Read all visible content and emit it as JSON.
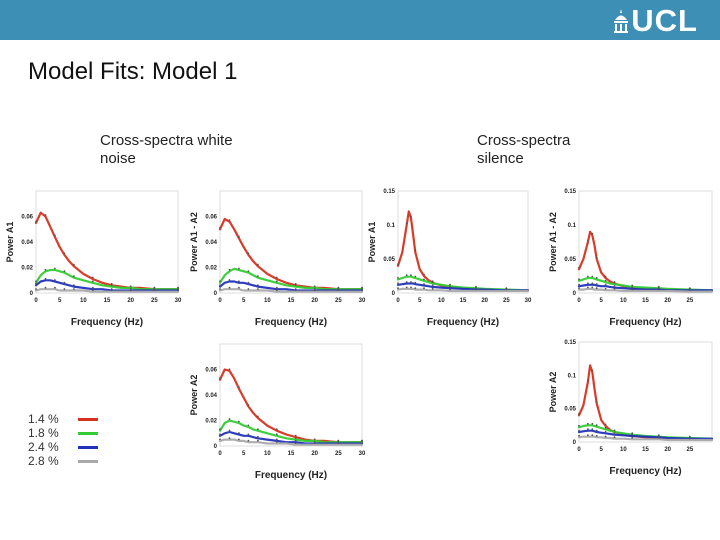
{
  "header": {
    "logo_text": "UCL",
    "bar_color": "#3d8fb6"
  },
  "slide": {
    "title": "Model Fits: Model 1"
  },
  "sections": {
    "white_noise": "Cross-spectra white\nnoise",
    "silence": "Cross-spectra\nsilence"
  },
  "legend": {
    "items": [
      {
        "label": "1.4 %",
        "color": "#d6321e"
      },
      {
        "label": "1.8 %",
        "color": "#33cc33"
      },
      {
        "label": "2.4 %",
        "color": "#2233bb"
      },
      {
        "label": "2.8 %",
        "color": "#aaaaaa"
      }
    ]
  },
  "chart_data": [
    {
      "id": "wn-a1",
      "type": "line",
      "condition": "white noise",
      "ylabel": "Power A1",
      "xlabel": "Frequency (Hz)",
      "xlim": [
        0,
        30
      ],
      "ylim": [
        0,
        0.08
      ],
      "xticks": [
        "0",
        "5",
        "10",
        "15",
        "20",
        "25",
        "30"
      ],
      "yticks": [
        "0",
        "0.02",
        "0.04",
        "0.06"
      ],
      "ytick_values": [
        0,
        0.02,
        0.04,
        0.06
      ],
      "x": [
        0,
        1,
        2,
        3,
        4,
        5,
        6,
        7,
        8,
        10,
        12,
        14,
        16,
        18,
        20,
        22,
        25,
        28,
        30
      ],
      "series": [
        {
          "name": "1.4 %",
          "color": "#d6321e",
          "values": [
            0.055,
            0.063,
            0.06,
            0.052,
            0.044,
            0.036,
            0.03,
            0.025,
            0.021,
            0.015,
            0.011,
            0.008,
            0.006,
            0.005,
            0.004,
            0.004,
            0.003,
            0.003,
            0.003
          ]
        },
        {
          "name": "1.8 %",
          "color": "#33cc33",
          "values": [
            0.008,
            0.014,
            0.017,
            0.018,
            0.018,
            0.017,
            0.016,
            0.014,
            0.012,
            0.01,
            0.008,
            0.006,
            0.005,
            0.004,
            0.004,
            0.003,
            0.003,
            0.003,
            0.003
          ]
        },
        {
          "name": "2.4 %",
          "color": "#2233bb",
          "values": [
            0.006,
            0.009,
            0.01,
            0.01,
            0.009,
            0.008,
            0.007,
            0.006,
            0.005,
            0.004,
            0.003,
            0.003,
            0.002,
            0.002,
            0.002,
            0.002,
            0.002,
            0.002,
            0.002
          ]
        },
        {
          "name": "2.8 %",
          "color": "#aaaaaa",
          "values": [
            0.002,
            0.003,
            0.003,
            0.003,
            0.003,
            0.002,
            0.002,
            0.002,
            0.002,
            0.002,
            0.001,
            0.001,
            0.001,
            0.001,
            0.001,
            0.001,
            0.001,
            0.001,
            0.001
          ]
        }
      ]
    },
    {
      "id": "wn-a1a2",
      "type": "line",
      "condition": "white noise",
      "ylabel": "Power A1 - A2",
      "xlabel": "Frequency (Hz)",
      "xlim": [
        0,
        30
      ],
      "ylim": [
        0,
        0.08
      ],
      "xticks": [
        "0",
        "5",
        "10",
        "15",
        "20",
        "25",
        "30"
      ],
      "yticks": [
        "0",
        "0.02",
        "0.04",
        "0.06"
      ],
      "ytick_values": [
        0,
        0.02,
        0.04,
        0.06
      ],
      "x": [
        0,
        1,
        2,
        3,
        4,
        5,
        6,
        7,
        8,
        10,
        12,
        14,
        16,
        18,
        20,
        22,
        25,
        28,
        30
      ],
      "series": [
        {
          "name": "1.4 %",
          "color": "#d6321e",
          "values": [
            0.05,
            0.058,
            0.056,
            0.05,
            0.043,
            0.036,
            0.03,
            0.025,
            0.021,
            0.015,
            0.011,
            0.008,
            0.006,
            0.005,
            0.004,
            0.004,
            0.003,
            0.003,
            0.003
          ]
        },
        {
          "name": "1.8 %",
          "color": "#33cc33",
          "values": [
            0.008,
            0.014,
            0.017,
            0.019,
            0.018,
            0.017,
            0.016,
            0.014,
            0.012,
            0.01,
            0.008,
            0.006,
            0.005,
            0.004,
            0.004,
            0.003,
            0.003,
            0.003,
            0.003
          ]
        },
        {
          "name": "2.4 %",
          "color": "#2233bb",
          "values": [
            0.005,
            0.008,
            0.009,
            0.009,
            0.008,
            0.008,
            0.007,
            0.006,
            0.005,
            0.004,
            0.003,
            0.003,
            0.002,
            0.002,
            0.002,
            0.002,
            0.002,
            0.002,
            0.002
          ]
        },
        {
          "name": "2.8 %",
          "color": "#aaaaaa",
          "values": [
            0.002,
            0.003,
            0.003,
            0.003,
            0.003,
            0.002,
            0.002,
            0.002,
            0.002,
            0.002,
            0.001,
            0.001,
            0.001,
            0.001,
            0.001,
            0.001,
            0.001,
            0.001,
            0.001
          ]
        }
      ]
    },
    {
      "id": "wn-a2",
      "type": "line",
      "condition": "white noise",
      "ylabel": "Power A2",
      "xlabel": "Frequency (Hz)",
      "xlim": [
        0,
        30
      ],
      "ylim": [
        0,
        0.08
      ],
      "xticks": [
        "0",
        "5",
        "10",
        "15",
        "20",
        "25",
        "30"
      ],
      "yticks": [
        "0",
        "0.02",
        "0.04",
        "0.06"
      ],
      "ytick_values": [
        0,
        0.02,
        0.04,
        0.06
      ],
      "x": [
        0,
        1,
        2,
        3,
        4,
        5,
        6,
        7,
        8,
        10,
        12,
        14,
        16,
        18,
        20,
        22,
        25,
        28,
        30
      ],
      "series": [
        {
          "name": "1.4 %",
          "color": "#d6321e",
          "values": [
            0.052,
            0.06,
            0.059,
            0.053,
            0.045,
            0.038,
            0.031,
            0.026,
            0.022,
            0.016,
            0.012,
            0.009,
            0.007,
            0.005,
            0.004,
            0.004,
            0.003,
            0.003,
            0.003
          ]
        },
        {
          "name": "1.8 %",
          "color": "#33cc33",
          "values": [
            0.012,
            0.018,
            0.02,
            0.019,
            0.018,
            0.016,
            0.015,
            0.013,
            0.012,
            0.01,
            0.008,
            0.006,
            0.005,
            0.004,
            0.004,
            0.003,
            0.003,
            0.003,
            0.003
          ]
        },
        {
          "name": "2.4 %",
          "color": "#2233bb",
          "values": [
            0.008,
            0.01,
            0.011,
            0.01,
            0.009,
            0.008,
            0.008,
            0.007,
            0.006,
            0.005,
            0.004,
            0.003,
            0.003,
            0.002,
            0.002,
            0.002,
            0.002,
            0.002,
            0.002
          ]
        },
        {
          "name": "2.8 %",
          "color": "#aaaaaa",
          "values": [
            0.004,
            0.005,
            0.005,
            0.005,
            0.004,
            0.004,
            0.003,
            0.003,
            0.003,
            0.002,
            0.002,
            0.002,
            0.001,
            0.001,
            0.001,
            0.001,
            0.001,
            0.001,
            0.001
          ]
        }
      ]
    },
    {
      "id": "sil-a1",
      "type": "line",
      "condition": "silence",
      "ylabel": "Power A1",
      "xlabel": "Frequency (Hz)",
      "xlim": [
        0,
        30
      ],
      "ylim": [
        0,
        0.15
      ],
      "xticks": [
        "0",
        "5",
        "10",
        "15",
        "20",
        "25",
        "30"
      ],
      "yticks": [
        "0",
        "0.05",
        "0.1",
        "0.15"
      ],
      "ytick_values": [
        0,
        0.05,
        0.1,
        0.15
      ],
      "x": [
        0,
        1,
        2,
        2.5,
        3,
        3.5,
        4,
        5,
        6,
        7,
        8,
        10,
        12,
        15,
        18,
        20,
        25,
        30
      ],
      "series": [
        {
          "name": "1.4 %",
          "color": "#d6321e",
          "values": [
            0.04,
            0.06,
            0.1,
            0.12,
            0.11,
            0.085,
            0.06,
            0.035,
            0.025,
            0.019,
            0.015,
            0.011,
            0.009,
            0.007,
            0.006,
            0.005,
            0.004,
            0.004
          ]
        },
        {
          "name": "1.8 %",
          "color": "#33cc33",
          "values": [
            0.02,
            0.022,
            0.024,
            0.024,
            0.024,
            0.023,
            0.022,
            0.02,
            0.018,
            0.016,
            0.014,
            0.012,
            0.01,
            0.008,
            0.007,
            0.006,
            0.005,
            0.004
          ]
        },
        {
          "name": "2.4 %",
          "color": "#2233bb",
          "values": [
            0.012,
            0.013,
            0.014,
            0.014,
            0.014,
            0.014,
            0.013,
            0.012,
            0.011,
            0.01,
            0.009,
            0.008,
            0.007,
            0.006,
            0.005,
            0.005,
            0.004,
            0.004
          ]
        },
        {
          "name": "2.8 %",
          "color": "#aaaaaa",
          "values": [
            0.005,
            0.006,
            0.006,
            0.006,
            0.006,
            0.006,
            0.005,
            0.005,
            0.005,
            0.004,
            0.004,
            0.004,
            0.003,
            0.003,
            0.003,
            0.003,
            0.003,
            0.003
          ]
        }
      ]
    },
    {
      "id": "sil-a1a2",
      "type": "line",
      "condition": "silence",
      "ylabel": "Power A1 - A2",
      "xlabel": "Frequency (Hz)",
      "xlim": [
        0,
        30
      ],
      "ylim": [
        0,
        0.15
      ],
      "xticks": [
        "0",
        "5",
        "10",
        "15",
        "20",
        "25"
      ],
      "yticks": [
        "0",
        "0.05",
        "0.1",
        "0.15"
      ],
      "ytick_values": [
        0,
        0.05,
        0.1,
        0.15
      ],
      "x": [
        0,
        1,
        2,
        2.5,
        3,
        3.5,
        4,
        5,
        6,
        7,
        8,
        10,
        12,
        15,
        18,
        20,
        25,
        30
      ],
      "series": [
        {
          "name": "1.4 %",
          "color": "#d6321e",
          "values": [
            0.035,
            0.05,
            0.075,
            0.09,
            0.085,
            0.07,
            0.05,
            0.03,
            0.022,
            0.017,
            0.014,
            0.01,
            0.008,
            0.006,
            0.005,
            0.005,
            0.004,
            0.004
          ]
        },
        {
          "name": "1.8 %",
          "color": "#33cc33",
          "values": [
            0.018,
            0.02,
            0.022,
            0.022,
            0.022,
            0.021,
            0.02,
            0.018,
            0.016,
            0.014,
            0.013,
            0.011,
            0.009,
            0.008,
            0.007,
            0.006,
            0.005,
            0.004
          ]
        },
        {
          "name": "2.4 %",
          "color": "#2233bb",
          "values": [
            0.01,
            0.011,
            0.012,
            0.012,
            0.012,
            0.012,
            0.011,
            0.01,
            0.01,
            0.009,
            0.008,
            0.007,
            0.006,
            0.005,
            0.005,
            0.004,
            0.004,
            0.004
          ]
        },
        {
          "name": "2.8 %",
          "color": "#aaaaaa",
          "values": [
            0.005,
            0.005,
            0.006,
            0.006,
            0.006,
            0.005,
            0.005,
            0.005,
            0.004,
            0.004,
            0.004,
            0.003,
            0.003,
            0.003,
            0.003,
            0.003,
            0.002,
            0.002
          ]
        }
      ]
    },
    {
      "id": "sil-a2",
      "type": "line",
      "condition": "silence",
      "ylabel": "Power A2",
      "xlabel": "Frequency (Hz)",
      "xlim": [
        0,
        30
      ],
      "ylim": [
        0,
        0.15
      ],
      "xticks": [
        "0",
        "5",
        "10",
        "15",
        "20",
        "25"
      ],
      "yticks": [
        "0",
        "0.05",
        "0.1",
        "0.15"
      ],
      "ytick_values": [
        0,
        0.05,
        0.1,
        0.15
      ],
      "x": [
        0,
        1,
        2,
        2.5,
        3,
        3.5,
        4,
        5,
        6,
        7,
        8,
        10,
        12,
        15,
        18,
        20,
        25,
        30
      ],
      "series": [
        {
          "name": "1.4 %",
          "color": "#d6321e",
          "values": [
            0.04,
            0.055,
            0.09,
            0.115,
            0.105,
            0.08,
            0.058,
            0.033,
            0.024,
            0.018,
            0.015,
            0.011,
            0.009,
            0.007,
            0.006,
            0.005,
            0.004,
            0.004
          ]
        },
        {
          "name": "1.8 %",
          "color": "#33cc33",
          "values": [
            0.022,
            0.024,
            0.025,
            0.025,
            0.025,
            0.024,
            0.023,
            0.021,
            0.019,
            0.017,
            0.015,
            0.013,
            0.011,
            0.009,
            0.008,
            0.007,
            0.006,
            0.005
          ]
        },
        {
          "name": "2.4 %",
          "color": "#2233bb",
          "values": [
            0.015,
            0.016,
            0.017,
            0.017,
            0.017,
            0.016,
            0.015,
            0.014,
            0.013,
            0.012,
            0.011,
            0.01,
            0.009,
            0.008,
            0.007,
            0.006,
            0.005,
            0.005
          ]
        },
        {
          "name": "2.8 %",
          "color": "#aaaaaa",
          "values": [
            0.007,
            0.008,
            0.008,
            0.008,
            0.008,
            0.008,
            0.007,
            0.007,
            0.006,
            0.006,
            0.005,
            0.005,
            0.004,
            0.004,
            0.004,
            0.003,
            0.003,
            0.003
          ]
        }
      ]
    }
  ]
}
